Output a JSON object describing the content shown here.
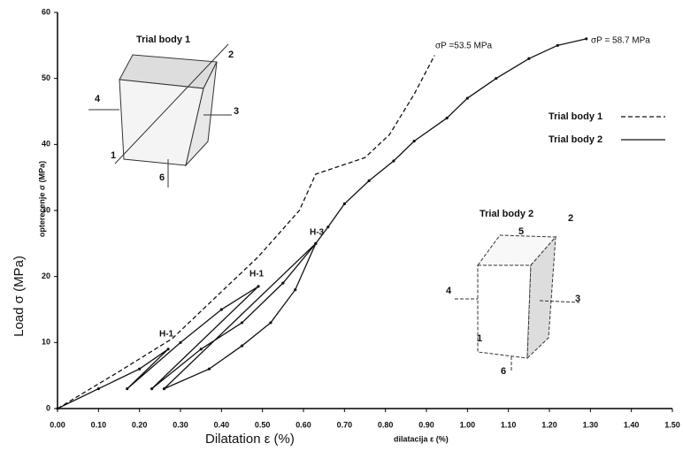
{
  "chart_data": {
    "type": "line",
    "x_label": "dilatacija ε (%)",
    "x_label_en": "Dilatation ε (%)",
    "y_label": "opterecenje σ (MPa)",
    "y_label_en": "Load σ (MPa)",
    "xlim": [
      0,
      1.5
    ],
    "ylim": [
      0,
      60
    ],
    "xticks": [
      {
        "value": 0,
        "label": "0.00"
      },
      {
        "value": 0.1,
        "label": "0.10"
      },
      {
        "value": 0.2,
        "label": "0.20"
      },
      {
        "value": 0.3,
        "label": "0.30"
      },
      {
        "value": 0.4,
        "label": "0.40"
      },
      {
        "value": 0.5,
        "label": "0.50"
      },
      {
        "value": 0.6,
        "label": "0.60"
      },
      {
        "value": 0.7,
        "label": "0.70"
      },
      {
        "value": 0.8,
        "label": "0.80"
      },
      {
        "value": 0.9,
        "label": "0.90"
      },
      {
        "value": 1.0,
        "label": "1.00"
      },
      {
        "value": 1.1,
        "label": "1.10"
      },
      {
        "value": 1.2,
        "label": "1.20"
      },
      {
        "value": 1.3,
        "label": "1.30"
      },
      {
        "value": 1.4,
        "label": "1.40"
      },
      {
        "value": 1.5,
        "label": "1.50"
      }
    ],
    "yticks": [
      0,
      10,
      20,
      30,
      40,
      50,
      60
    ],
    "series": [
      {
        "name": "Trial body 1",
        "color": "#111111",
        "dashed": true,
        "x": [
          0,
          0.15,
          0.28,
          0.4,
          0.49,
          0.59,
          0.63,
          0.75,
          0.81,
          0.87,
          0.92
        ],
        "values": [
          0,
          5.6,
          10.6,
          17.7,
          23,
          30,
          35.5,
          38,
          41.5,
          47.6,
          53.5
        ]
      },
      {
        "name": "Trial body 2",
        "color": "#111111",
        "dashed": false,
        "x": [
          0,
          0.1,
          0.2,
          0.27,
          0.17,
          0.3,
          0.4,
          0.49,
          0.23,
          0.35,
          0.45,
          0.55,
          0.63,
          0.26,
          0.37,
          0.45,
          0.52,
          0.58,
          0.63,
          0.66,
          0.7,
          0.76,
          0.82,
          0.87,
          0.95,
          1.0,
          1.07,
          1.15,
          1.22,
          1.29
        ],
        "values": [
          0,
          3,
          6,
          9,
          3,
          10,
          15,
          18.5,
          3,
          9,
          13,
          19,
          25,
          3,
          6,
          9.5,
          13,
          18,
          25,
          27.5,
          31,
          34.5,
          37.5,
          40.5,
          44,
          47,
          50,
          53,
          55,
          56
        ]
      }
    ],
    "annotations": [
      "σP =53.5 MPa",
      "σP = 58.7 MPa",
      "H-1",
      "H-1",
      "H-3"
    ],
    "insets": [
      {
        "title": "Trial body 1",
        "labels": [
          "1",
          "2",
          "3",
          "4",
          "6"
        ]
      },
      {
        "title": "Trial body 2",
        "labels": [
          "1",
          "2",
          "3",
          "4",
          "5",
          "6"
        ]
      }
    ]
  }
}
